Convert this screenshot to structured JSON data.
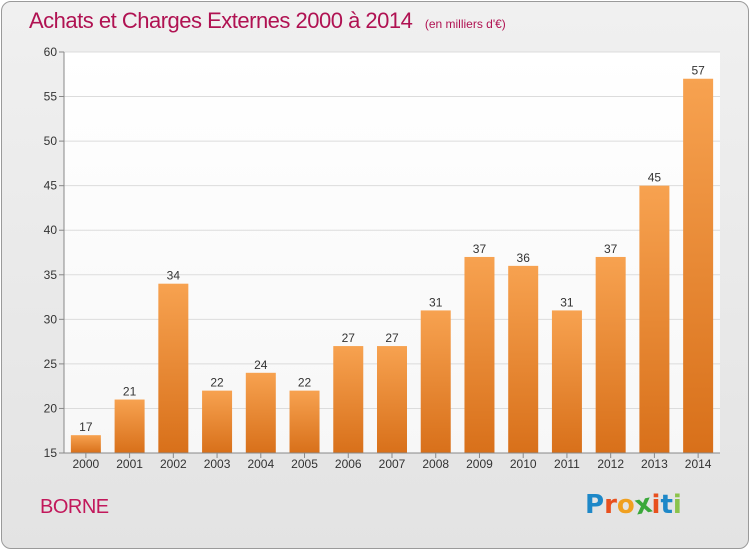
{
  "title": "Achats et Charges Externes 2000 à 2014",
  "unit": "(en milliers d'€)",
  "location": "BORNE",
  "brand": {
    "name": "Proxiti",
    "letter_colors": [
      "#1e88c8",
      "#e8501e",
      "#f0a020",
      "#3aa83a",
      "#e8501e",
      "#1e88c8",
      "#8bc34a"
    ]
  },
  "colors": {
    "title": "#b01252",
    "bar_top": "#f7a250",
    "bar_bottom": "#d8701a"
  },
  "chart_data": {
    "type": "bar",
    "title": "Achats et Charges Externes 2000 à 2014",
    "subtitle": "(en milliers d'€)",
    "categories": [
      "2000",
      "2001",
      "2002",
      "2003",
      "2004",
      "2005",
      "2006",
      "2007",
      "2008",
      "2009",
      "2010",
      "2011",
      "2012",
      "2013",
      "2014"
    ],
    "values": [
      17,
      21,
      34,
      22,
      24,
      22,
      27,
      27,
      31,
      37,
      36,
      31,
      37,
      45,
      57
    ],
    "ylim": [
      15,
      60
    ],
    "yticks": [
      15,
      20,
      25,
      30,
      35,
      40,
      45,
      50,
      55,
      60
    ],
    "grid": true,
    "xlabel": "",
    "ylabel": ""
  }
}
